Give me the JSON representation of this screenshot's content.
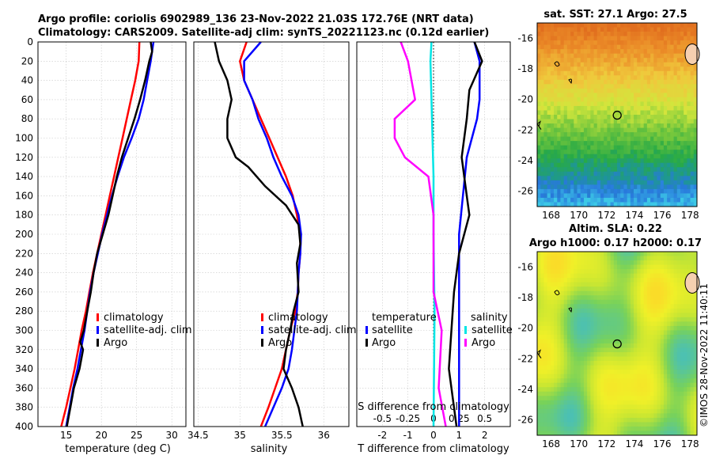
{
  "header": {
    "title_line1": "Argo profile: coriolis 6902989_136 23-Nov-2022 21.03S 172.76E (NRT data)",
    "title_line2": "Climatology: CARS2009. Satellite-adj clim: synTS_20221123.nc (0.12d earlier)"
  },
  "colors": {
    "climatology": "#ff0000",
    "satellite": "#0000ff",
    "argo": "#000000",
    "salinity_sat": "#00e5e5",
    "salinity_argo": "#ff00ff"
  },
  "chart_data": [
    {
      "type": "line",
      "id": "temperature",
      "xlabel": "temperature (deg C)",
      "ylabel": "",
      "xlim": [
        11,
        32
      ],
      "ylim": [
        400,
        0
      ],
      "xticks": [
        "15",
        "20",
        "25",
        "30"
      ],
      "yticks": [
        "0",
        "20",
        "40",
        "60",
        "80",
        "100",
        "120",
        "140",
        "160",
        "180",
        "200",
        "220",
        "240",
        "260",
        "280",
        "300",
        "320",
        "340",
        "360",
        "380",
        "400"
      ],
      "legend": [
        "climatology",
        "satellite-adj. clim",
        "Argo"
      ],
      "series": [
        {
          "name": "climatology",
          "points": [
            [
              25.4,
              0
            ],
            [
              25.3,
              20
            ],
            [
              24.8,
              40
            ],
            [
              24.2,
              60
            ],
            [
              23.6,
              80
            ],
            [
              23.0,
              100
            ],
            [
              22.4,
              120
            ],
            [
              21.8,
              140
            ],
            [
              21.2,
              160
            ],
            [
              20.6,
              180
            ],
            [
              20.0,
              200
            ],
            [
              19.4,
              220
            ],
            [
              18.8,
              240
            ],
            [
              18.3,
              260
            ],
            [
              17.8,
              280
            ],
            [
              17.2,
              300
            ],
            [
              16.7,
              320
            ],
            [
              16.2,
              340
            ],
            [
              15.6,
              360
            ],
            [
              15.0,
              380
            ],
            [
              14.3,
              400
            ]
          ]
        },
        {
          "name": "satellite-adj. clim",
          "points": [
            [
              27.4,
              0
            ],
            [
              27.0,
              20
            ],
            [
              26.5,
              40
            ],
            [
              26.0,
              60
            ],
            [
              25.3,
              80
            ],
            [
              24.3,
              100
            ],
            [
              23.2,
              120
            ],
            [
              22.3,
              140
            ],
            [
              21.5,
              160
            ],
            [
              20.8,
              180
            ],
            [
              20.1,
              200
            ],
            [
              19.5,
              220
            ],
            [
              18.9,
              240
            ],
            [
              18.4,
              260
            ],
            [
              18.0,
              280
            ],
            [
              17.6,
              300
            ],
            [
              17.1,
              320
            ],
            [
              16.6,
              340
            ],
            [
              16.0,
              360
            ],
            [
              15.5,
              380
            ],
            [
              15.0,
              400
            ]
          ]
        },
        {
          "name": "Argo",
          "points": [
            [
              27.0,
              0
            ],
            [
              27.2,
              10
            ],
            [
              26.8,
              20
            ],
            [
              26.2,
              40
            ],
            [
              25.5,
              60
            ],
            [
              24.7,
              80
            ],
            [
              23.8,
              100
            ],
            [
              22.9,
              120
            ],
            [
              22.2,
              140
            ],
            [
              21.6,
              160
            ],
            [
              21.0,
              180
            ],
            [
              20.2,
              200
            ],
            [
              19.4,
              220
            ],
            [
              18.9,
              240
            ],
            [
              18.5,
              260
            ],
            [
              18.0,
              280
            ],
            [
              17.5,
              300
            ],
            [
              17.0,
              312
            ],
            [
              17.4,
              320
            ],
            [
              16.9,
              340
            ],
            [
              16.1,
              360
            ],
            [
              15.6,
              380
            ],
            [
              15.1,
              400
            ]
          ]
        }
      ]
    },
    {
      "type": "line",
      "id": "salinity",
      "xlabel": "salinity",
      "ylabel": "",
      "xlim": [
        34.45,
        36.3
      ],
      "ylim": [
        400,
        0
      ],
      "xticks": [
        "34.5",
        "35",
        "35.5",
        "36"
      ],
      "legend": [
        "climatology",
        "satellite-adj. clim",
        "Argo"
      ],
      "series": [
        {
          "name": "climatology",
          "points": [
            [
              35.08,
              0
            ],
            [
              35.0,
              20
            ],
            [
              35.05,
              40
            ],
            [
              35.15,
              60
            ],
            [
              35.25,
              80
            ],
            [
              35.35,
              100
            ],
            [
              35.45,
              120
            ],
            [
              35.55,
              140
            ],
            [
              35.63,
              160
            ],
            [
              35.68,
              180
            ],
            [
              35.72,
              200
            ],
            [
              35.72,
              220
            ],
            [
              35.7,
              240
            ],
            [
              35.69,
              260
            ],
            [
              35.66,
              280
            ],
            [
              35.6,
              300
            ],
            [
              35.55,
              320
            ],
            [
              35.5,
              340
            ],
            [
              35.42,
              360
            ],
            [
              35.34,
              380
            ],
            [
              35.25,
              400
            ]
          ]
        },
        {
          "name": "satellite-adj. clim",
          "points": [
            [
              35.25,
              0
            ],
            [
              35.05,
              20
            ],
            [
              35.05,
              40
            ],
            [
              35.15,
              60
            ],
            [
              35.22,
              80
            ],
            [
              35.32,
              100
            ],
            [
              35.4,
              120
            ],
            [
              35.5,
              140
            ],
            [
              35.62,
              160
            ],
            [
              35.7,
              180
            ],
            [
              35.73,
              200
            ],
            [
              35.72,
              220
            ],
            [
              35.7,
              240
            ],
            [
              35.69,
              260
            ],
            [
              35.68,
              280
            ],
            [
              35.65,
              300
            ],
            [
              35.62,
              320
            ],
            [
              35.58,
              340
            ],
            [
              35.5,
              360
            ],
            [
              35.4,
              380
            ],
            [
              35.3,
              400
            ]
          ]
        },
        {
          "name": "Argo",
          "points": [
            [
              34.7,
              0
            ],
            [
              34.75,
              20
            ],
            [
              34.85,
              40
            ],
            [
              34.9,
              60
            ],
            [
              34.85,
              80
            ],
            [
              34.85,
              100
            ],
            [
              34.95,
              120
            ],
            [
              35.1,
              130
            ],
            [
              35.3,
              150
            ],
            [
              35.55,
              170
            ],
            [
              35.7,
              190
            ],
            [
              35.72,
              210
            ],
            [
              35.68,
              230
            ],
            [
              35.7,
              260
            ],
            [
              35.64,
              280
            ],
            [
              35.6,
              300
            ],
            [
              35.55,
              320
            ],
            [
              35.52,
              340
            ],
            [
              35.62,
              360
            ],
            [
              35.7,
              380
            ],
            [
              35.75,
              400
            ]
          ]
        }
      ]
    },
    {
      "type": "line",
      "id": "difference",
      "xlabel": "T difference from climatology",
      "xlabel_top": "S difference from climatology",
      "xlim": [
        -3,
        3
      ],
      "ylim": [
        400,
        0
      ],
      "xticks": [
        "-2",
        "-1",
        "0",
        "1",
        "2"
      ],
      "xticks_top": [
        "-0.5",
        "-0.25",
        "0",
        "0.25",
        "0.5"
      ],
      "legend_titles": [
        "temperature",
        "salinity"
      ],
      "legend_left": [
        "satellite",
        "Argo"
      ],
      "legend_right": [
        "satellite",
        "Argo"
      ],
      "series": [
        {
          "name": "T satellite",
          "points": [
            [
              1.6,
              0
            ],
            [
              1.8,
              20
            ],
            [
              1.8,
              40
            ],
            [
              1.8,
              60
            ],
            [
              1.7,
              80
            ],
            [
              1.5,
              100
            ],
            [
              1.3,
              120
            ],
            [
              1.0,
              200
            ],
            [
              1.0,
              280
            ],
            [
              1.0,
              330
            ],
            [
              1.0,
              400
            ]
          ]
        },
        {
          "name": "T Argo",
          "points": [
            [
              1.6,
              0
            ],
            [
              1.9,
              20
            ],
            [
              1.4,
              50
            ],
            [
              1.3,
              80
            ],
            [
              1.1,
              120
            ],
            [
              1.3,
              160
            ],
            [
              1.4,
              180
            ],
            [
              1.0,
              220
            ],
            [
              0.8,
              260
            ],
            [
              0.7,
              300
            ],
            [
              0.6,
              340
            ],
            [
              0.9,
              400
            ]
          ]
        },
        {
          "name": "S satellite",
          "points": [
            [
              -0.02,
              0
            ],
            [
              -0.03,
              20
            ],
            [
              -0.02,
              60
            ],
            [
              -0.01,
              100
            ],
            [
              0.0,
              140
            ],
            [
              0.0,
              200
            ],
            [
              0.01,
              280
            ],
            [
              0.0,
              400
            ]
          ]
        },
        {
          "name": "S Argo",
          "points": [
            [
              -0.32,
              0
            ],
            [
              -0.25,
              20
            ],
            [
              -0.18,
              60
            ],
            [
              -0.38,
              80
            ],
            [
              -0.38,
              100
            ],
            [
              -0.28,
              120
            ],
            [
              -0.05,
              140
            ],
            [
              0.0,
              180
            ],
            [
              0.0,
              260
            ],
            [
              0.08,
              300
            ],
            [
              0.05,
              360
            ],
            [
              0.12,
              400
            ]
          ]
        }
      ]
    }
  ],
  "maps": {
    "sst": {
      "title": "sat. SST: 27.1  Argo: 27.5",
      "xticks": [
        "168",
        "170",
        "172",
        "174",
        "176",
        "178"
      ],
      "yticks": [
        "-16",
        "-18",
        "-20",
        "-22",
        "-24",
        "-26"
      ],
      "marker": {
        "lon": 172.76,
        "lat": -21.03
      }
    },
    "sla": {
      "title_line1": "Altim. SLA: 0.22",
      "title_line2": "Argo h1000: 0.17  h2000: 0.17",
      "xticks": [
        "168",
        "170",
        "172",
        "174",
        "176",
        "178"
      ],
      "yticks": [
        "-16",
        "-18",
        "-20",
        "-22",
        "-24",
        "-26"
      ],
      "marker": {
        "lon": 172.76,
        "lat": -21.03
      }
    }
  },
  "credit": "©IMOS 28-Nov-2022 11:40:11"
}
